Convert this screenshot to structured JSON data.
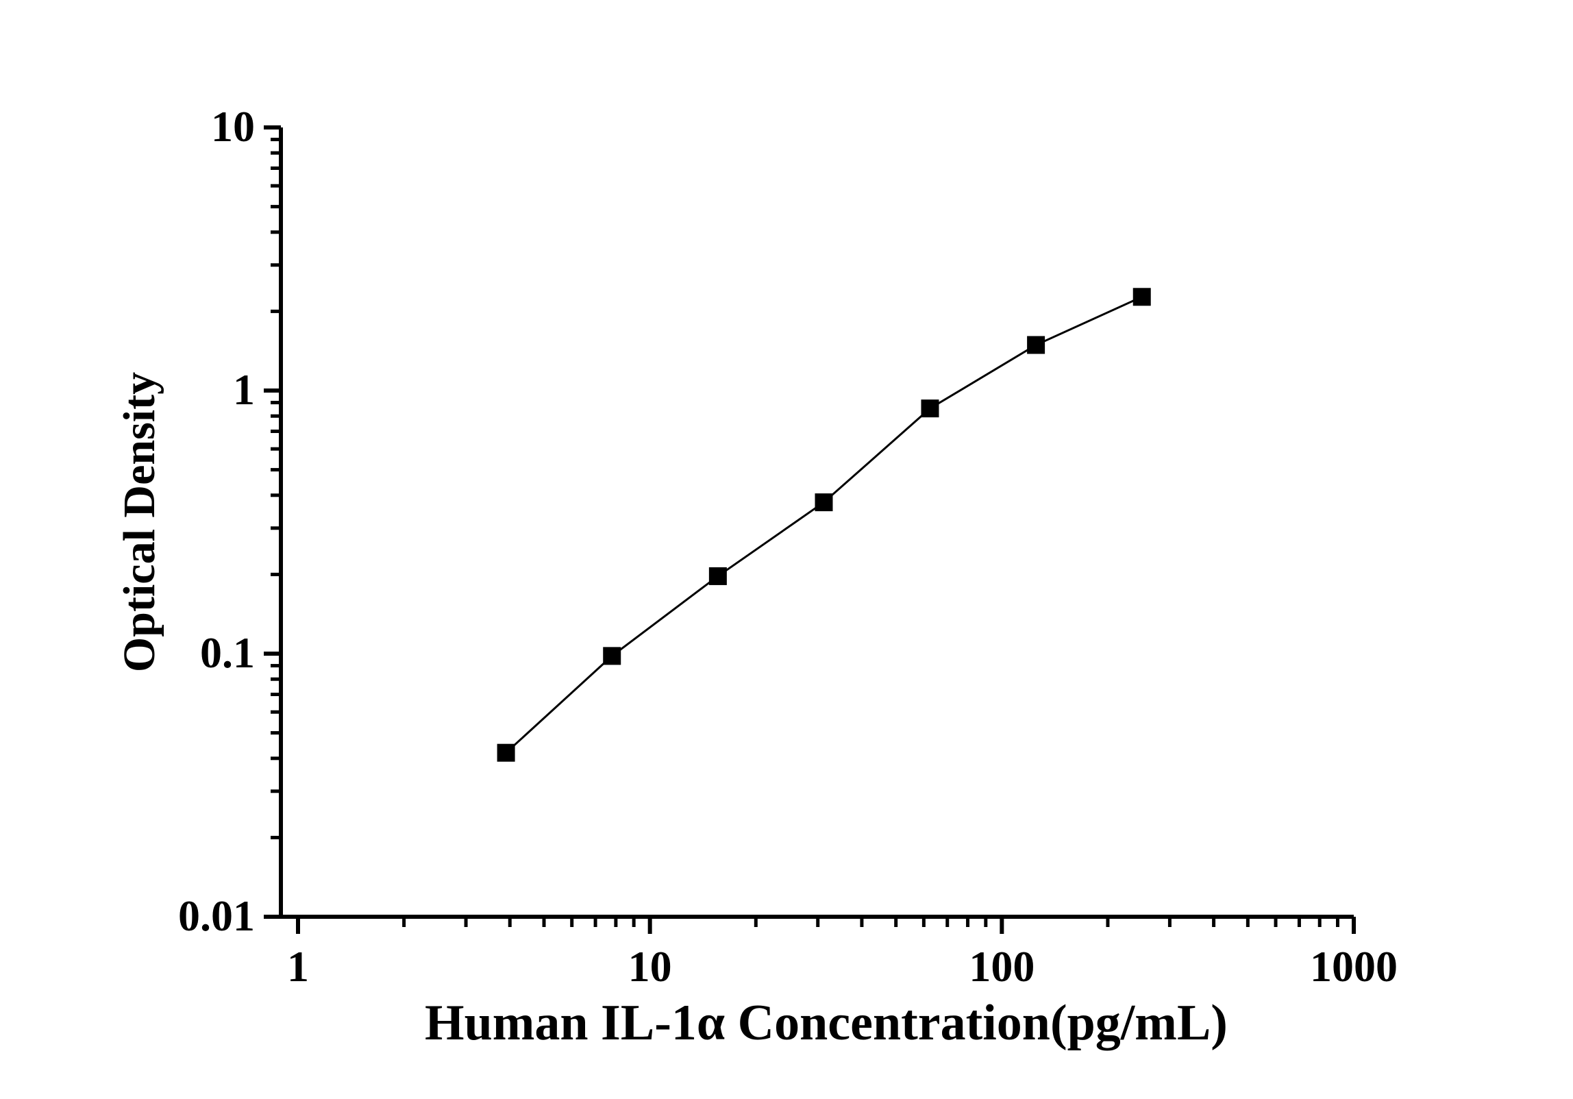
{
  "figure": {
    "background_color": "#ffffff",
    "foreground_color": "#000000"
  },
  "chart_data": {
    "type": "line",
    "subtype": "scatter-line-log-log",
    "title": "",
    "xlabel": "Human IL-1α Concentration(pg/mL)",
    "ylabel": "Optical Density",
    "x_scale": "log",
    "y_scale": "log",
    "xlim": [
      0.894,
      1000
    ],
    "ylim": [
      0.01,
      10
    ],
    "x_ticks": [
      1,
      10,
      100,
      1000
    ],
    "x_tick_labels": [
      "1",
      "10",
      "100",
      "1000"
    ],
    "y_ticks": [
      0.01,
      0.1,
      1,
      10
    ],
    "y_tick_labels": [
      "0.01",
      "0.1",
      "1",
      "10"
    ],
    "minor_ticks": "log-2-to-9-per-decade",
    "grid": false,
    "legend": "none",
    "line_color": "#000000",
    "marker": "filled-square",
    "marker_color": "#000000",
    "series": [
      {
        "name": "standard-curve",
        "points": [
          {
            "x": 3.9,
            "y": 0.042
          },
          {
            "x": 7.8,
            "y": 0.098
          },
          {
            "x": 15.6,
            "y": 0.197
          },
          {
            "x": 31.2,
            "y": 0.376
          },
          {
            "x": 62.5,
            "y": 0.855
          },
          {
            "x": 125,
            "y": 1.49
          },
          {
            "x": 250,
            "y": 2.27
          }
        ]
      }
    ]
  }
}
